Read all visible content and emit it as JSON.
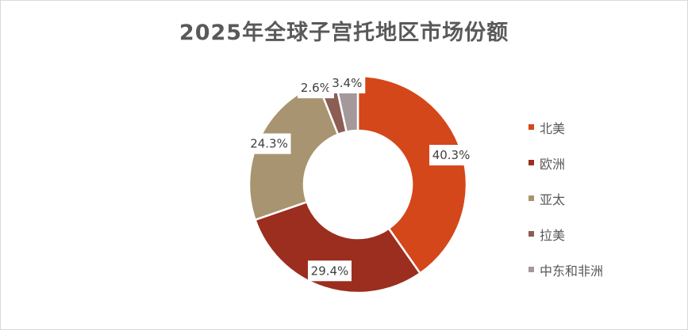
{
  "chart_data": {
    "type": "pie",
    "donut": true,
    "title": "2025年全球子宫托地区市场份额",
    "categories": [
      "北美",
      "欧洲",
      "亚太",
      "拉美",
      "中东和非洲"
    ],
    "values": [
      40.3,
      29.4,
      24.3,
      2.6,
      3.4
    ],
    "data_labels": [
      "40.3%",
      "29.4%",
      "24.3%",
      "2.6%",
      "3.4%"
    ],
    "colors": [
      "#D4471A",
      "#9B2E1F",
      "#A89470",
      "#8C5E53",
      "#A4989A"
    ],
    "legend": "right",
    "unit": "%"
  }
}
